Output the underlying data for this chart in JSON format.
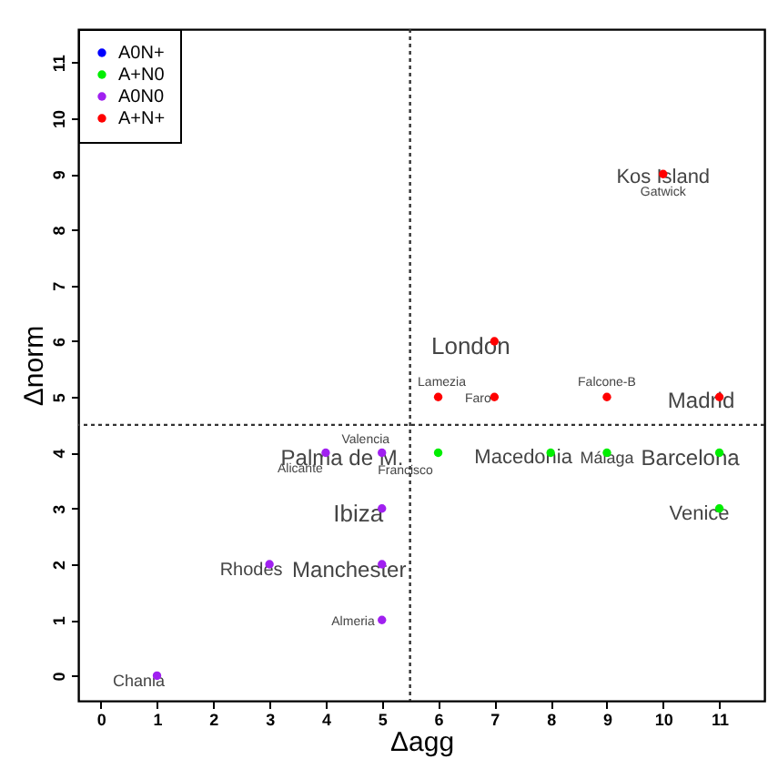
{
  "chart_data": {
    "type": "scatter",
    "xlabel": "Δagg",
    "ylabel": "Δnorm",
    "xlim": [
      -0.4,
      11.8
    ],
    "ylim": [
      -0.45,
      11.6
    ],
    "xticks": [
      0,
      1,
      2,
      3,
      4,
      5,
      6,
      7,
      8,
      9,
      10,
      11
    ],
    "yticks": [
      0,
      1,
      2,
      3,
      4,
      5,
      6,
      7,
      8,
      9,
      10,
      11
    ],
    "grid": false,
    "legend": "top left",
    "marker": "circle",
    "series": [
      {
        "name": "A0N+",
        "color": "#0000ff"
      },
      {
        "name": "A+N0",
        "color": "#00ee00",
        "x": [
          6,
          8,
          9,
          11,
          11
        ],
        "values": [
          4,
          4,
          4,
          4,
          3
        ]
      },
      {
        "name": "A0N0",
        "color": "#a020f0",
        "x": [
          4,
          5,
          5,
          3,
          5,
          5,
          1
        ],
        "values": [
          4,
          4,
          3,
          2,
          2,
          1,
          0
        ]
      },
      {
        "name": "A+N+",
        "color": "#ff0000",
        "x": [
          10,
          7,
          6,
          7,
          9,
          11
        ],
        "values": [
          9,
          6,
          5,
          5,
          5,
          5
        ]
      }
    ],
    "ref_lines": [
      {
        "axis": "x",
        "value": 5.5,
        "line_style": "dotted"
      },
      {
        "axis": "y",
        "value": 4.5,
        "line_style": "dotted"
      }
    ],
    "annotations": [
      {
        "text": "Kos Island",
        "x": 10,
        "y": 9
      },
      {
        "text": "Gatwick",
        "x": 10,
        "y": 9
      },
      {
        "text": "London",
        "x": 7,
        "y": 6
      },
      {
        "text": "Lamezia",
        "x": 6,
        "y": 5
      },
      {
        "text": "Faro",
        "x": 7,
        "y": 5
      },
      {
        "text": "Falcone-B",
        "x": 9,
        "y": 5
      },
      {
        "text": "Madrid",
        "x": 11,
        "y": 5
      },
      {
        "text": "Valencia",
        "x": 5,
        "y": 4
      },
      {
        "text": "Palma de M.",
        "x": 4,
        "y": 4
      },
      {
        "text": "Alicante",
        "x": 4,
        "y": 4
      },
      {
        "text": "Francisco",
        "x": 6,
        "y": 4
      },
      {
        "text": "Macedonia",
        "x": 8,
        "y": 4
      },
      {
        "text": "Málaga",
        "x": 9,
        "y": 4
      },
      {
        "text": "Barcelona",
        "x": 11,
        "y": 4
      },
      {
        "text": "Venice",
        "x": 11,
        "y": 3
      },
      {
        "text": "Ibiza",
        "x": 5,
        "y": 3
      },
      {
        "text": "Rhodes",
        "x": 3,
        "y": 2
      },
      {
        "text": "Manchester",
        "x": 5,
        "y": 2
      },
      {
        "text": "Almeria",
        "x": 5,
        "y": 1
      },
      {
        "text": "Chania",
        "x": 1,
        "y": 0
      }
    ]
  }
}
